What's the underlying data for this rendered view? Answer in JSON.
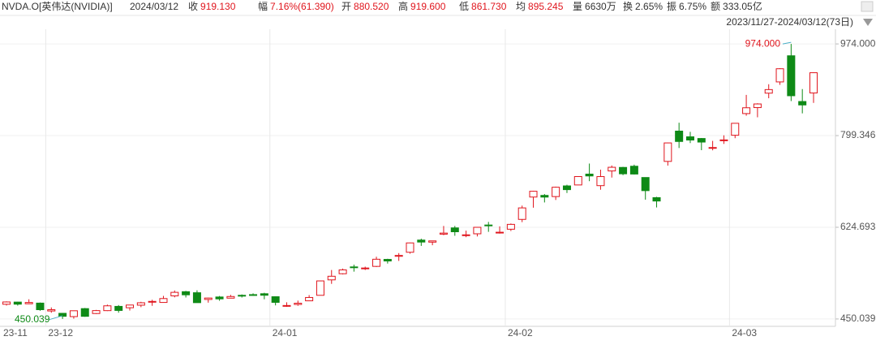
{
  "chart_data": {
    "type": "candlestick",
    "header": [
      {
        "label": "NVDA.O[英伟达(NVIDIA)]",
        "color": "#333333"
      },
      {
        "label": "2024/03/12",
        "color": "#333333"
      },
      {
        "label": "收",
        "value": "919.130",
        "color": "#e0151d"
      },
      {
        "label": "幅",
        "value": "7.16%(61.390)",
        "color": "#e0151d"
      },
      {
        "label": "开",
        "value": "880.520",
        "color": "#e0151d"
      },
      {
        "label": "高",
        "value": "919.600",
        "color": "#e0151d"
      },
      {
        "label": "低",
        "value": "861.730",
        "color": "#e0151d"
      },
      {
        "label": "均",
        "value": "895.245",
        "color": "#e0151d"
      },
      {
        "label": "量",
        "value": "6630万",
        "color": "#333333"
      },
      {
        "label": "换",
        "value": "2.65%",
        "color": "#333333"
      },
      {
        "label": "振",
        "value": "6.75%",
        "color": "#333333"
      },
      {
        "label": "额",
        "value": "333.05亿",
        "color": "#333333"
      }
    ],
    "range_text": "2023/11/27-2024/03/12(73日)",
    "categories": [
      "23-11",
      null,
      null,
      null,
      "23-12",
      null,
      null,
      null,
      null,
      null,
      null,
      null,
      null,
      null,
      null,
      null,
      null,
      null,
      null,
      null,
      null,
      null,
      null,
      null,
      "24-01",
      null,
      null,
      null,
      null,
      null,
      null,
      null,
      null,
      null,
      null,
      null,
      null,
      null,
      null,
      null,
      null,
      null,
      null,
      null,
      null,
      "24-02",
      null,
      null,
      null,
      null,
      null,
      null,
      null,
      null,
      null,
      null,
      null,
      null,
      null,
      null,
      null,
      null,
      null,
      null,
      null,
      "24-03",
      null,
      null,
      null,
      null,
      null,
      null,
      null
    ],
    "open": [
      478.04,
      482.18,
      478.98,
      480.24,
      465.25,
      460.77,
      454.53,
      469.74,
      460.4,
      465.9,
      474.0,
      471.4,
      476.3,
      483.5,
      481.5,
      494.0,
      502.0,
      500.0,
      487.2,
      491.9,
      489.7,
      495.1,
      496.4,
      498.1,
      492.4,
      474.9,
      477.7,
      484.6,
      495.1,
      524.5,
      536.2,
      549.2,
      546.2,
      550.2,
      563.5,
      569.4,
      577.1,
      600.3,
      596.4,
      611.6,
      623.5,
      609.6,
      612.3,
      629.0,
      614.4,
      621.0,
      639.7,
      682.3,
      685.4,
      683.2,
      703.5,
      705.3,
      726.0,
      704.0,
      732.0,
      738.7,
      741.0,
      719.5,
      681.1,
      750.2,
      807.9,
      797.0,
      793.8,
      776.2,
      790.9,
      800.0,
      841.3,
      852.7,
      880.2,
      901.6,
      951.4,
      864.3,
      880.52
    ],
    "high": [
      483.49,
      482.69,
      487.51,
      481.32,
      472.0,
      461.56,
      466.0,
      471.0,
      467.3,
      477.4,
      476.5,
      476.1,
      482.7,
      486.6,
      494.0,
      504.3,
      503.5,
      504.6,
      490.6,
      493.8,
      496.0,
      496.8,
      498.8,
      499.97,
      492.9,
      481.8,
      485.0,
      495.5,
      522.8,
      543.3,
      546.0,
      553.5,
      549.7,
      568.6,
      564.7,
      575.5,
      595.4,
      603.0,
      599.0,
      627.2,
      627.2,
      618.3,
      624.9,
      634.9,
      626.5,
      631.9,
      666.0,
      694.0,
      688.0,
      702.1,
      705.7,
      721.8,
      746.1,
      734.5,
      742.4,
      739.8,
      744.0,
      719.6,
      682.7,
      785.8,
      823.9,
      806.5,
      794.8,
      789.3,
      799.9,
      823.0,
      876.9,
      860.97,
      897.2,
      927.7,
      974.0,
      887.97,
      919.6
    ],
    "low": [
      475.69,
      475.52,
      478.4,
      465.6,
      461.87,
      450.039,
      450.64,
      454.1,
      459.5,
      465.1,
      462.0,
      466.1,
      472.5,
      475.1,
      481.3,
      491.2,
      491.0,
      481.5,
      481.1,
      484.7,
      489.6,
      490.9,
      494.1,
      487.5,
      475.9,
      473.2,
      475.1,
      484.0,
      494.8,
      516.9,
      534.9,
      540.2,
      543.3,
      549.0,
      555.6,
      560.6,
      574.5,
      589.2,
      590.5,
      609.6,
      608.5,
      605.8,
      607.2,
      616.0,
      612.7,
      617.5,
      634.5,
      662.0,
      672.0,
      676.7,
      690.0,
      705.0,
      712.5,
      696.2,
      719.4,
      724.0,
      725.2,
      677.3,
      662.5,
      742.2,
      775.7,
      785.1,
      771.6,
      771.3,
      783.5,
      794.4,
      837.2,
      834.2,
      870.5,
      896.0,
      865.1,
      841.7,
      861.73
    ],
    "close": [
      482.42,
      478.21,
      481.4,
      467.7,
      467.65,
      455.1,
      465.66,
      455.03,
      465.96,
      475.06,
      466.27,
      476.57,
      480.88,
      483.5,
      488.9,
      500.77,
      496.04,
      481.11,
      489.9,
      488.3,
      492.79,
      494.17,
      495.22,
      495.22,
      481.68,
      475.69,
      479.98,
      490.97,
      522.53,
      531.4,
      543.5,
      548.22,
      547.1,
      563.82,
      560.53,
      571.07,
      594.91,
      596.54,
      598.73,
      613.62,
      616.17,
      610.31,
      624.65,
      627.74,
      615.27,
      630.27,
      661.6,
      693.32,
      682.23,
      700.99,
      696.41,
      721.33,
      722.48,
      721.28,
      739.0,
      726.58,
      726.13,
      694.52,
      674.72,
      785.38,
      788.17,
      790.92,
      787.01,
      776.63,
      791.12,
      822.79,
      852.37,
      859.64,
      887.0,
      926.69,
      875.28,
      857.74,
      919.13
    ],
    "up_color": "#e0151d",
    "down_color": "#0e8a16",
    "ylim": [
      436,
      1019
    ],
    "yticks": [
      {
        "value": 450.039,
        "label": "450.039"
      },
      {
        "value": 624.693,
        "label": "624.693"
      },
      {
        "value": 799.346,
        "label": "799.346"
      },
      {
        "value": 974,
        "label": "974.000"
      }
    ],
    "max_label": {
      "value": 974,
      "label": "974.000",
      "color": "#e0151d"
    },
    "min_label": {
      "value": 450.039,
      "label": "450.039",
      "color": "#0e8a16"
    },
    "grid": true
  }
}
